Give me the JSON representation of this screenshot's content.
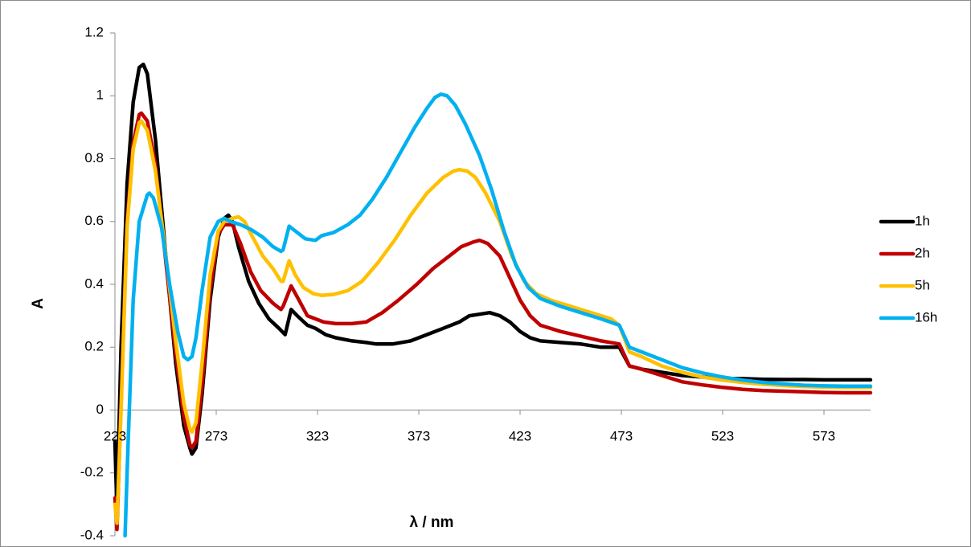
{
  "chart_data": {
    "type": "line",
    "title": "",
    "xlabel": "λ / nm",
    "ylabel": "A",
    "xlim": [
      223,
      596
    ],
    "ylim": [
      -0.4,
      1.2
    ],
    "xticks": [
      "223",
      "273",
      "323",
      "373",
      "423",
      "473",
      "523",
      "573"
    ],
    "yticks": [
      "-0.4",
      "-0.2",
      "0",
      "0.2",
      "0.4",
      "0.6",
      "0.8",
      "1",
      "1.2"
    ],
    "grid": false,
    "legend_position": "right",
    "series": [
      {
        "name": "1h",
        "color": "#000000",
        "points": [
          [
            223,
            -0.1
          ],
          [
            224,
            -0.32
          ],
          [
            226,
            0.2
          ],
          [
            229,
            0.72
          ],
          [
            232,
            0.98
          ],
          [
            235,
            1.09
          ],
          [
            237,
            1.1
          ],
          [
            239,
            1.07
          ],
          [
            243,
            0.86
          ],
          [
            248,
            0.5
          ],
          [
            253,
            0.15
          ],
          [
            257,
            -0.05
          ],
          [
            260,
            -0.12
          ],
          [
            261,
            -0.14
          ],
          [
            263,
            -0.12
          ],
          [
            266,
            0.05
          ],
          [
            270,
            0.35
          ],
          [
            274,
            0.55
          ],
          [
            277,
            0.61
          ],
          [
            279,
            0.62
          ],
          [
            281,
            0.6
          ],
          [
            284,
            0.52
          ],
          [
            289,
            0.41
          ],
          [
            294,
            0.34
          ],
          [
            299,
            0.29
          ],
          [
            304,
            0.26
          ],
          [
            307,
            0.24
          ],
          [
            310,
            0.32
          ],
          [
            313,
            0.3
          ],
          [
            318,
            0.27
          ],
          [
            322,
            0.26
          ],
          [
            327,
            0.24
          ],
          [
            332,
            0.23
          ],
          [
            340,
            0.22
          ],
          [
            347,
            0.215
          ],
          [
            352,
            0.21
          ],
          [
            360,
            0.21
          ],
          [
            369,
            0.22
          ],
          [
            377,
            0.24
          ],
          [
            385,
            0.26
          ],
          [
            393,
            0.28
          ],
          [
            398,
            0.3
          ],
          [
            403,
            0.305
          ],
          [
            408,
            0.31
          ],
          [
            413,
            0.3
          ],
          [
            418,
            0.28
          ],
          [
            423,
            0.25
          ],
          [
            428,
            0.23
          ],
          [
            433,
            0.22
          ],
          [
            443,
            0.215
          ],
          [
            453,
            0.21
          ],
          [
            463,
            0.2
          ],
          [
            472,
            0.2
          ],
          [
            477,
            0.14
          ],
          [
            483,
            0.13
          ],
          [
            493,
            0.12
          ],
          [
            503,
            0.11
          ],
          [
            513,
            0.105
          ],
          [
            523,
            0.1
          ],
          [
            533,
            0.1
          ],
          [
            543,
            0.098
          ],
          [
            553,
            0.097
          ],
          [
            563,
            0.097
          ],
          [
            573,
            0.096
          ],
          [
            583,
            0.096
          ],
          [
            596,
            0.096
          ]
        ]
      },
      {
        "name": "2h",
        "color": "#C00000",
        "points": [
          [
            223,
            -0.28
          ],
          [
            224,
            -0.38
          ],
          [
            226,
            0.02
          ],
          [
            229,
            0.6
          ],
          [
            232,
            0.85
          ],
          [
            235,
            0.94
          ],
          [
            236,
            0.945
          ],
          [
            239,
            0.92
          ],
          [
            243,
            0.78
          ],
          [
            248,
            0.48
          ],
          [
            253,
            0.18
          ],
          [
            257,
            -0.02
          ],
          [
            260,
            -0.11
          ],
          [
            261,
            -0.12
          ],
          [
            263,
            -0.1
          ],
          [
            266,
            0.08
          ],
          [
            270,
            0.38
          ],
          [
            274,
            0.56
          ],
          [
            277,
            0.59
          ],
          [
            279,
            0.59
          ],
          [
            281,
            0.59
          ],
          [
            285,
            0.53
          ],
          [
            290,
            0.44
          ],
          [
            295,
            0.38
          ],
          [
            301,
            0.34
          ],
          [
            305,
            0.32
          ],
          [
            306,
            0.33
          ],
          [
            310,
            0.395
          ],
          [
            313,
            0.36
          ],
          [
            318,
            0.3
          ],
          [
            322,
            0.29
          ],
          [
            326,
            0.28
          ],
          [
            332,
            0.275
          ],
          [
            340,
            0.275
          ],
          [
            347,
            0.28
          ],
          [
            355,
            0.31
          ],
          [
            363,
            0.35
          ],
          [
            372,
            0.4
          ],
          [
            380,
            0.45
          ],
          [
            388,
            0.49
          ],
          [
            394,
            0.52
          ],
          [
            400,
            0.535
          ],
          [
            403,
            0.54
          ],
          [
            407,
            0.53
          ],
          [
            413,
            0.49
          ],
          [
            418,
            0.42
          ],
          [
            423,
            0.35
          ],
          [
            428,
            0.3
          ],
          [
            433,
            0.27
          ],
          [
            443,
            0.25
          ],
          [
            453,
            0.235
          ],
          [
            463,
            0.22
          ],
          [
            472,
            0.21
          ],
          [
            477,
            0.14
          ],
          [
            483,
            0.13
          ],
          [
            493,
            0.11
          ],
          [
            503,
            0.09
          ],
          [
            513,
            0.08
          ],
          [
            523,
            0.072
          ],
          [
            533,
            0.066
          ],
          [
            543,
            0.062
          ],
          [
            553,
            0.06
          ],
          [
            563,
            0.058
          ],
          [
            573,
            0.056
          ],
          [
            583,
            0.055
          ],
          [
            596,
            0.055
          ]
        ]
      },
      {
        "name": "5h",
        "color": "#FFC000",
        "points": [
          [
            223,
            -0.3
          ],
          [
            224,
            -0.36
          ],
          [
            226,
            0.0
          ],
          [
            229,
            0.58
          ],
          [
            232,
            0.83
          ],
          [
            235,
            0.915
          ],
          [
            236,
            0.92
          ],
          [
            239,
            0.89
          ],
          [
            243,
            0.76
          ],
          [
            248,
            0.5
          ],
          [
            253,
            0.22
          ],
          [
            257,
            0.02
          ],
          [
            260,
            -0.06
          ],
          [
            261,
            -0.07
          ],
          [
            263,
            -0.04
          ],
          [
            266,
            0.15
          ],
          [
            270,
            0.43
          ],
          [
            274,
            0.57
          ],
          [
            277,
            0.6
          ],
          [
            281,
            0.61
          ],
          [
            284,
            0.615
          ],
          [
            287,
            0.6
          ],
          [
            291,
            0.55
          ],
          [
            296,
            0.49
          ],
          [
            301,
            0.45
          ],
          [
            305,
            0.41
          ],
          [
            306,
            0.41
          ],
          [
            309,
            0.475
          ],
          [
            312,
            0.43
          ],
          [
            316,
            0.39
          ],
          [
            321,
            0.37
          ],
          [
            325,
            0.365
          ],
          [
            331,
            0.368
          ],
          [
            338,
            0.38
          ],
          [
            345,
            0.41
          ],
          [
            353,
            0.47
          ],
          [
            361,
            0.54
          ],
          [
            369,
            0.62
          ],
          [
            377,
            0.69
          ],
          [
            385,
            0.74
          ],
          [
            390,
            0.76
          ],
          [
            393,
            0.765
          ],
          [
            397,
            0.76
          ],
          [
            401,
            0.74
          ],
          [
            406,
            0.69
          ],
          [
            413,
            0.6
          ],
          [
            419,
            0.49
          ],
          [
            425,
            0.41
          ],
          [
            431,
            0.37
          ],
          [
            438,
            0.35
          ],
          [
            448,
            0.33
          ],
          [
            458,
            0.31
          ],
          [
            468,
            0.29
          ],
          [
            472,
            0.27
          ],
          [
            477,
            0.185
          ],
          [
            483,
            0.17
          ],
          [
            493,
            0.14
          ],
          [
            503,
            0.12
          ],
          [
            513,
            0.105
          ],
          [
            523,
            0.095
          ],
          [
            533,
            0.088
          ],
          [
            543,
            0.082
          ],
          [
            553,
            0.078
          ],
          [
            563,
            0.075
          ],
          [
            573,
            0.073
          ],
          [
            583,
            0.072
          ],
          [
            596,
            0.072
          ]
        ]
      },
      {
        "name": "16h",
        "color": "#00B0F0",
        "points": [
          [
            228,
            -0.4
          ],
          [
            229,
            -0.2
          ],
          [
            232,
            0.35
          ],
          [
            235,
            0.6
          ],
          [
            239,
            0.685
          ],
          [
            240,
            0.69
          ],
          [
            242,
            0.675
          ],
          [
            246,
            0.58
          ],
          [
            250,
            0.4
          ],
          [
            254,
            0.25
          ],
          [
            257,
            0.17
          ],
          [
            259,
            0.16
          ],
          [
            261,
            0.17
          ],
          [
            263,
            0.23
          ],
          [
            266,
            0.38
          ],
          [
            270,
            0.55
          ],
          [
            274,
            0.6
          ],
          [
            277,
            0.61
          ],
          [
            280,
            0.6
          ],
          [
            285,
            0.59
          ],
          [
            290,
            0.575
          ],
          [
            296,
            0.55
          ],
          [
            301,
            0.52
          ],
          [
            305,
            0.505
          ],
          [
            306,
            0.51
          ],
          [
            309,
            0.585
          ],
          [
            312,
            0.57
          ],
          [
            317,
            0.545
          ],
          [
            322,
            0.54
          ],
          [
            325,
            0.555
          ],
          [
            331,
            0.565
          ],
          [
            338,
            0.59
          ],
          [
            344,
            0.62
          ],
          [
            350,
            0.67
          ],
          [
            357,
            0.74
          ],
          [
            364,
            0.82
          ],
          [
            371,
            0.9
          ],
          [
            377,
            0.96
          ],
          [
            381,
            0.995
          ],
          [
            384,
            1.005
          ],
          [
            387,
            1.0
          ],
          [
            391,
            0.97
          ],
          [
            396,
            0.91
          ],
          [
            403,
            0.81
          ],
          [
            409,
            0.7
          ],
          [
            415,
            0.57
          ],
          [
            421,
            0.46
          ],
          [
            427,
            0.39
          ],
          [
            433,
            0.355
          ],
          [
            443,
            0.33
          ],
          [
            453,
            0.31
          ],
          [
            463,
            0.29
          ],
          [
            472,
            0.27
          ],
          [
            477,
            0.2
          ],
          [
            483,
            0.185
          ],
          [
            493,
            0.16
          ],
          [
            503,
            0.135
          ],
          [
            513,
            0.118
          ],
          [
            523,
            0.105
          ],
          [
            533,
            0.095
          ],
          [
            543,
            0.088
          ],
          [
            553,
            0.083
          ],
          [
            563,
            0.079
          ],
          [
            573,
            0.077
          ],
          [
            583,
            0.076
          ],
          [
            596,
            0.076
          ]
        ]
      }
    ]
  }
}
